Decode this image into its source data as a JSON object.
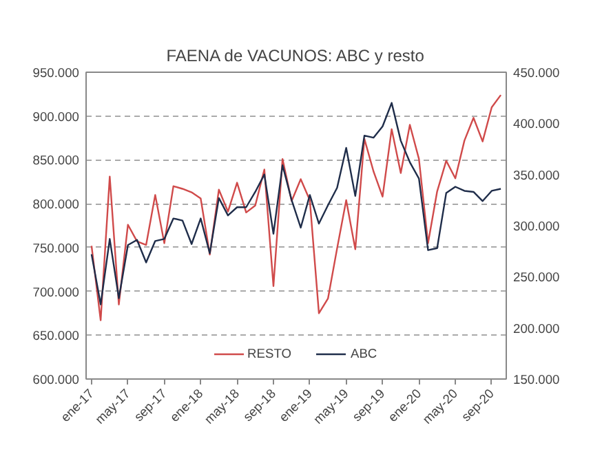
{
  "chart_data": {
    "type": "line",
    "title": "FAENA de VACUNOS: ABC y resto",
    "categories": [
      "ene-17",
      null,
      null,
      null,
      "may-17",
      null,
      null,
      null,
      "sep-17",
      null,
      null,
      null,
      "ene-18",
      null,
      null,
      null,
      "may-18",
      null,
      null,
      null,
      "sep-18",
      null,
      null,
      null,
      "ene-19",
      null,
      null,
      null,
      "may-19",
      null,
      null,
      null,
      "sep-19",
      null,
      null,
      null,
      "ene-20",
      null,
      null,
      null,
      "may-20",
      null,
      null,
      null,
      "sep-20",
      null
    ],
    "series": [
      {
        "name": "RESTO",
        "color": "#d04a4a",
        "values": [
          752000,
          667000,
          831000,
          685000,
          776000,
          757000,
          753000,
          810000,
          755000,
          820000,
          817000,
          813000,
          806000,
          742000,
          816000,
          791000,
          824000,
          790000,
          798000,
          839000,
          706000,
          851000,
          803000,
          828000,
          804000,
          675000,
          692000,
          749000,
          804000,
          748000,
          874000,
          837000,
          808000,
          885000,
          835000,
          890000,
          851000,
          755000,
          814000,
          849000,
          829000,
          872000,
          898000,
          871000,
          910000,
          924000
        ]
      },
      {
        "name": "ABC",
        "color": "#1f2d4a",
        "axis": "y2",
        "values": [
          272000,
          223000,
          287000,
          229000,
          281000,
          286000,
          264000,
          285000,
          287000,
          307000,
          305000,
          282000,
          307000,
          273000,
          327000,
          310000,
          318000,
          318000,
          333000,
          350000,
          292000,
          359000,
          325000,
          298000,
          330000,
          302000,
          320000,
          337000,
          376000,
          329000,
          388000,
          386000,
          397000,
          420000,
          383000,
          362000,
          346000,
          276000,
          278000,
          332000,
          338000,
          334000,
          333000,
          324000,
          334000,
          336000
        ]
      }
    ],
    "ylim": [
      600000,
      950000
    ],
    "yticks": [
      {
        "value": 600000,
        "label": "600.000"
      },
      {
        "value": 650000,
        "label": "650.000"
      },
      {
        "value": 700000,
        "label": "700.000"
      },
      {
        "value": 750000,
        "label": "750.000"
      },
      {
        "value": 800000,
        "label": "800.000"
      },
      {
        "value": 850000,
        "label": "850.000"
      },
      {
        "value": 900000,
        "label": "900.000"
      },
      {
        "value": 950000,
        "label": "950.000"
      }
    ],
    "y2lim": [
      150000,
      450000
    ],
    "y2ticks": [
      {
        "value": 150000,
        "label": "150.000"
      },
      {
        "value": 200000,
        "label": "200.000"
      },
      {
        "value": 250000,
        "label": "250.000"
      },
      {
        "value": 300000,
        "label": "300.000"
      },
      {
        "value": 350000,
        "label": "350.000"
      },
      {
        "value": 400000,
        "label": "400.000"
      },
      {
        "value": 450000,
        "label": "450.000"
      }
    ],
    "grid": "y",
    "legend": "bottom",
    "marker": "none",
    "line_style": "solid"
  }
}
